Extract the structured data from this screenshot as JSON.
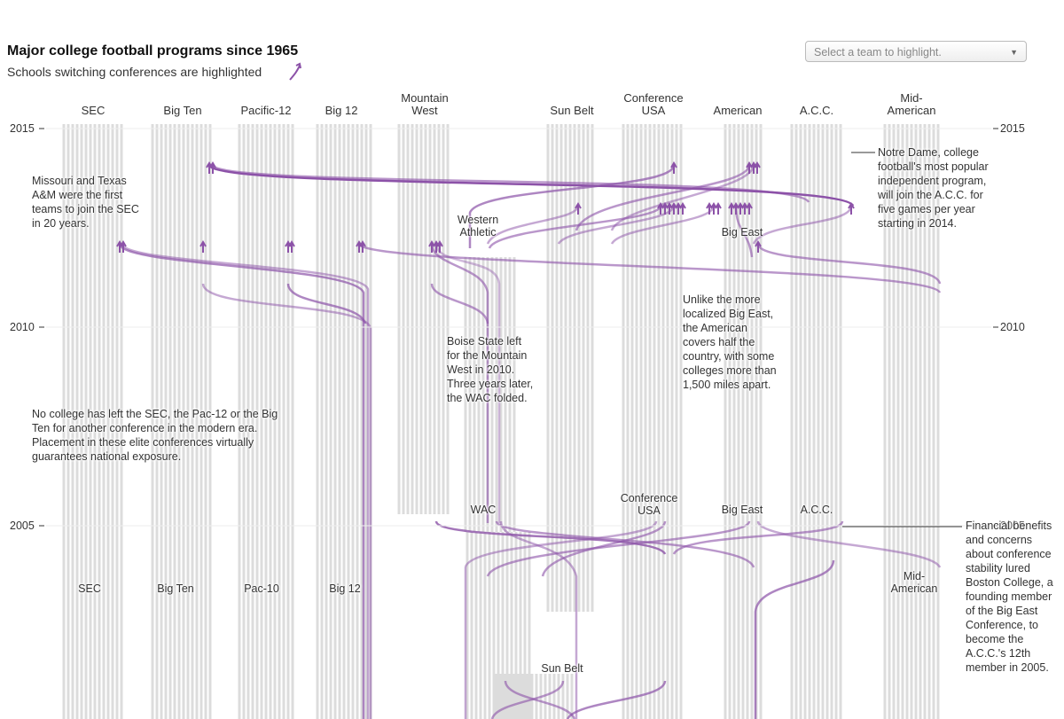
{
  "controls": {
    "team_select": "Select a team to highlight."
  },
  "chart_data": {
    "type": "flow",
    "title": "Major college football programs since 1965",
    "subtitle": "Schools switching conferences are highlighted",
    "categories": [
      "SEC",
      "Big Ten",
      "Pacific-12",
      "Big 12",
      "Mountain West",
      "Sun Belt",
      "Conference USA",
      "American",
      "A.C.C.",
      "Mid-American"
    ],
    "ylim": [
      2000,
      2016
    ],
    "yticks": [
      2005,
      2010,
      2015
    ],
    "highlight_color": "#8c52a8",
    "track_color": "#dcdcdc",
    "annotations": [
      {
        "lines": [
          "Missouri and Texas",
          "A&M were the first",
          "teams to join the SEC",
          "in 20 years."
        ]
      },
      {
        "lines": [
          "Notre Dame, college",
          "football's most popular",
          "independent program,",
          "will join the A.C.C. for",
          "five games per year",
          "starting in 2014."
        ]
      },
      {
        "lines": [
          "Unlike the more",
          "localized Big East,",
          "the American",
          "covers half the",
          "country, with some",
          "colleges more than",
          "1,500 miles apart."
        ]
      },
      {
        "lines": [
          "Boise State left",
          "for the Mountain",
          "West in 2010.",
          "Three years later,",
          "the WAC folded."
        ]
      },
      {
        "lines": [
          "No college has left the SEC, the Pac-12 or the Big",
          "Ten for another conference in the modern era.",
          "Placement in these elite conferences virtually",
          "guarantees national exposure."
        ]
      },
      {
        "lines": [
          "Financial benefits",
          "and concerns",
          "about conference",
          "stability lured",
          "Boston College, a",
          "founding member",
          "of the Big East",
          "Conference, to",
          "become the",
          "A.C.C.'s 12th",
          "member in 2005."
        ]
      }
    ],
    "period_labels": [
      {
        "lines": [
          "Western",
          "Athletic"
        ]
      },
      {
        "lines": [
          "Big East"
        ]
      },
      {
        "lines": [
          "WAC"
        ]
      },
      {
        "lines": [
          "Conference",
          "USA"
        ]
      },
      {
        "lines": [
          "Big East"
        ]
      },
      {
        "lines": [
          "A.C.C."
        ]
      },
      {
        "lines": [
          "SEC"
        ]
      },
      {
        "lines": [
          "Big Ten"
        ]
      },
      {
        "lines": [
          "Pac-10"
        ]
      },
      {
        "lines": [
          "Big 12"
        ]
      },
      {
        "lines": [
          "Mid-",
          "American"
        ]
      },
      {
        "lines": [
          "Sun Belt"
        ]
      }
    ]
  }
}
